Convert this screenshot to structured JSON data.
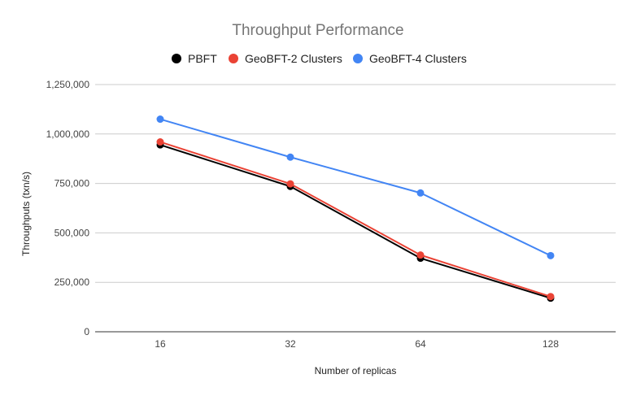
{
  "chart_data": {
    "type": "line",
    "title": "Throughput Performance",
    "xlabel": "Number of replicas",
    "ylabel": "Throughputs (txn/s)",
    "categories": [
      "16",
      "32",
      "64",
      "128"
    ],
    "ylim": [
      0,
      1250000
    ],
    "yticks": [
      0,
      250000,
      500000,
      750000,
      1000000,
      1250000
    ],
    "ytick_labels": [
      "0",
      "250,000",
      "500,000",
      "750,000",
      "1,000,000",
      "1,250,000"
    ],
    "grid": true,
    "legend_position": "top",
    "series": [
      {
        "name": "PBFT",
        "color": "#000000",
        "values": [
          945000,
          735000,
          372000,
          170000
        ]
      },
      {
        "name": "GeoBFT-2 Clusters",
        "color": "#ea4335",
        "values": [
          960000,
          748000,
          388000,
          178000
        ]
      },
      {
        "name": "GeoBFT-4 Clusters",
        "color": "#4285f4",
        "values": [
          1075000,
          883000,
          702000,
          385000
        ]
      }
    ]
  }
}
